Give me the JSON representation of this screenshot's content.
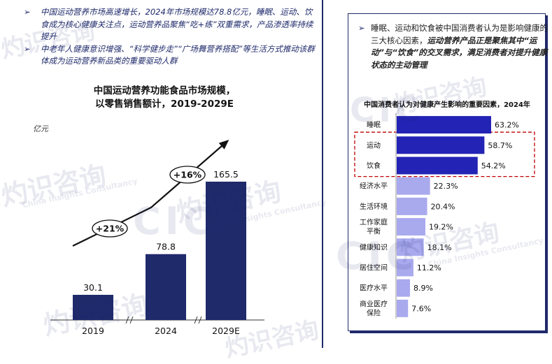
{
  "left": {
    "bullets": [
      "中国运动营养市场高速增长，2024年市场规模达78.8亿元，睡眠、运动、饮食成为核心健康关注点，运动营养品聚焦“吃+练”双重需求，产品渗透率持续提升",
      "中老年人健康意识增强、“科学健步走”“广场舞营养搭配”等生活方式推动该群体成为运动营养新品类的重要驱动人群"
    ],
    "title_line1": "中国运动营养功能食品市场规模，",
    "title_line2": "以零售销售额计，2019-2029E",
    "unit": "亿元"
  },
  "right": {
    "text_plain": "睡眠、运动和饮食被中国消费者认为是影响健康的三大核心因素，",
    "text_strong": "运动营养产品正是聚焦其中“运动”与“饮食”的交叉需求，满足消费者对提升健康状态的主动管理"
  },
  "watermark": {
    "cn": "灼识咨询",
    "en": "China Insights Consultancy",
    "logo": "CIC"
  },
  "colors": {
    "dark_bar": "#1f2a6b",
    "blue_bar": "#2323b5",
    "light_bar": "#a9a9ee",
    "highlight": "#c00000"
  },
  "chart_data": [
    {
      "type": "bar",
      "categories": [
        "2019",
        "2024",
        "2029E"
      ],
      "values": [
        30.1,
        78.8,
        165.5
      ],
      "value_labels": [
        "30.1",
        "78.8",
        "165.5"
      ],
      "title": "中国运动营养功能食品市场规模，以零售销售额计，2019-2029E",
      "ylabel": "亿元",
      "growth_annotations": [
        "+21%",
        "+16%"
      ],
      "grid": false
    },
    {
      "type": "bar",
      "orientation": "horizontal",
      "title": "中国消费者认为对健康产生影响的重要因素，2024年",
      "categories": [
        "睡眠",
        "运动",
        "饮食",
        "经济水平",
        "生活环境",
        "工作家庭平衡",
        "健康知识",
        "居住空间",
        "医疗水平",
        "商业医疗保险"
      ],
      "category_lines": [
        [
          "睡眠"
        ],
        [
          "运动"
        ],
        [
          "饮食"
        ],
        [
          "经济水平"
        ],
        [
          "生活环境"
        ],
        [
          "工作家庭",
          "平衡"
        ],
        [
          "健康知识"
        ],
        [
          "居住空间"
        ],
        [
          "医疗水平"
        ],
        [
          "商业医疗",
          "保险"
        ]
      ],
      "values": [
        63.2,
        58.7,
        54.2,
        22.3,
        20.4,
        19.2,
        18.1,
        11.2,
        8.9,
        7.6
      ],
      "value_labels": [
        "63.2%",
        "58.7%",
        "54.2%",
        "22.3%",
        "20.4%",
        "19.2%",
        "18.1%",
        "11.2%",
        "8.9%",
        "7.6%"
      ],
      "highlighted": [
        "运动",
        "饮食"
      ],
      "grid": false
    }
  ]
}
